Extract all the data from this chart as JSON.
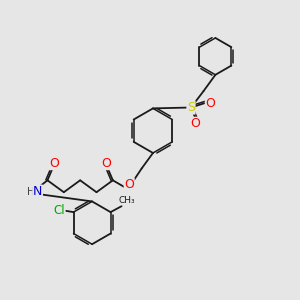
{
  "background_color": "#e6e6e6",
  "bond_color": "#1a1a1a",
  "atom_colors": {
    "O": "#ff0000",
    "N": "#0000cd",
    "S": "#cccc00",
    "Cl": "#00aa00",
    "H": "#444444",
    "C": "#1a1a1a"
  },
  "fig_width": 3.0,
  "fig_height": 3.0,
  "dpi": 100
}
